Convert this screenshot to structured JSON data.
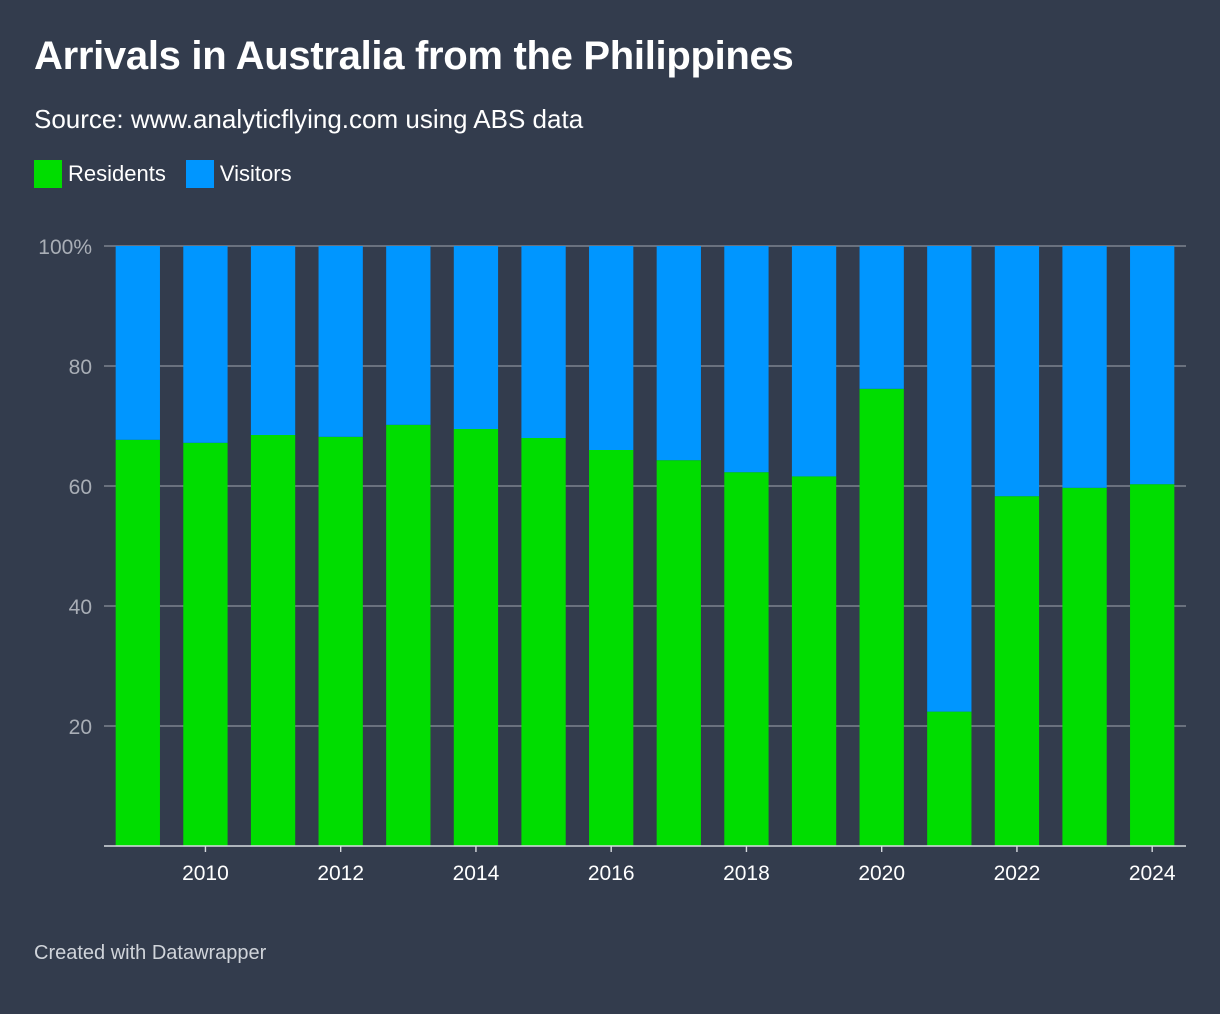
{
  "header": {
    "title": "Arrivals in Australia from the Philippines",
    "subtitle": "Source: www.analyticflying.com using ABS data"
  },
  "footer": {
    "credit": "Created with Datawrapper"
  },
  "colors": {
    "background": "#333c4d",
    "residents": "#00dd00",
    "visitors": "#0096ff",
    "grid": "#8a919c",
    "tick_y": "#a9aeb6",
    "tick_x": "#ffffff"
  },
  "legend": {
    "items": [
      {
        "label": "Residents",
        "color": "#00dd00"
      },
      {
        "label": "Visitors",
        "color": "#0096ff"
      }
    ]
  },
  "chart_data": {
    "type": "bar",
    "stacked": true,
    "title": "Arrivals in Australia from the Philippines",
    "subtitle": "Source: www.analyticflying.com using ABS data",
    "xlabel": "",
    "ylabel": "",
    "ylim": [
      0,
      100
    ],
    "y_ticks": [
      {
        "value": 20,
        "label": "20"
      },
      {
        "value": 40,
        "label": "40"
      },
      {
        "value": 60,
        "label": "60"
      },
      {
        "value": 80,
        "label": "80"
      },
      {
        "value": 100,
        "label": "100%"
      }
    ],
    "categories": [
      "2009",
      "2010",
      "2011",
      "2012",
      "2013",
      "2014",
      "2015",
      "2016",
      "2017",
      "2018",
      "2019",
      "2020",
      "2021",
      "2022",
      "2023",
      "2024"
    ],
    "x_tick_labels": [
      "2010",
      "2012",
      "2014",
      "2016",
      "2018",
      "2020",
      "2022",
      "2024"
    ],
    "series": [
      {
        "name": "Residents",
        "values": [
          67.7,
          67.2,
          68.5,
          68.2,
          70.2,
          69.5,
          68.0,
          66.0,
          64.3,
          62.3,
          61.6,
          76.2,
          22.4,
          58.3,
          59.7,
          60.3
        ]
      },
      {
        "name": "Visitors",
        "values": [
          32.3,
          32.8,
          31.5,
          31.8,
          29.8,
          30.5,
          32.0,
          34.0,
          35.7,
          37.7,
          38.4,
          23.8,
          77.6,
          41.7,
          40.3,
          39.7
        ]
      }
    ],
    "grid": true,
    "legend_position": "top-left"
  }
}
